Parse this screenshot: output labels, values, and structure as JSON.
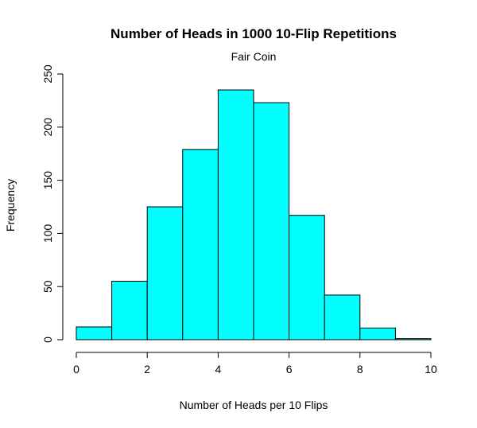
{
  "chart_data": {
    "type": "bar",
    "histogram": true,
    "title": "Number of Heads in 1000 10-Flip Repetitions",
    "subtitle": "Fair Coin",
    "xlabel": "Number of Heads per 10 Flips",
    "ylabel": "Frequency",
    "bins": [
      [
        0,
        1
      ],
      [
        1,
        2
      ],
      [
        2,
        3
      ],
      [
        3,
        4
      ],
      [
        4,
        5
      ],
      [
        5,
        6
      ],
      [
        6,
        7
      ],
      [
        7,
        8
      ],
      [
        8,
        9
      ],
      [
        9,
        10
      ]
    ],
    "values": [
      12,
      55,
      125,
      179,
      235,
      223,
      117,
      42,
      11,
      1
    ],
    "xlim": [
      0,
      10
    ],
    "ylim": [
      0,
      250
    ],
    "xticks": [
      0,
      2,
      4,
      6,
      8,
      10
    ],
    "yticks": [
      0,
      50,
      100,
      150,
      200,
      250
    ],
    "grid": false,
    "bar_color": "#00FFFF",
    "bar_edge_color": "#000000"
  }
}
